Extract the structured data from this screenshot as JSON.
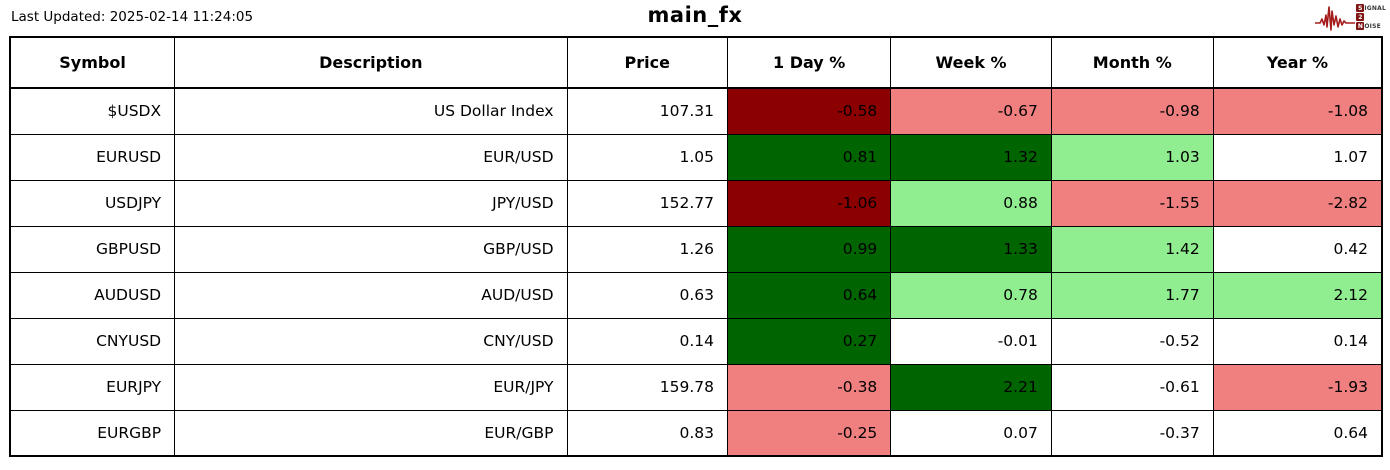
{
  "header": {
    "last_updated": "Last Updated: 2025-02-14 11:24:05",
    "title": "main_fx"
  },
  "logo": {
    "s": "S",
    "ignal": "IGNAL",
    "two": "2",
    "n": "N",
    "oise": "OISE",
    "waveform_color": "#a51c1c"
  },
  "colors": {
    "strong_loss": "#8B0000",
    "loss": "#F08080",
    "strong_gain": "#006400",
    "gain": "#90EE90",
    "neutral": "#FFFFFF"
  },
  "table": {
    "columns": [
      "Symbol",
      "Description",
      "Price",
      "1 Day %",
      "Week %",
      "Month %",
      "Year %"
    ],
    "cell_names": [
      "symbol-cell",
      "description-cell",
      "price-cell",
      "day-change-cell",
      "week-change-cell",
      "month-change-cell",
      "year-change-cell"
    ],
    "rows": [
      {
        "cells": [
          {
            "text": "$USDX",
            "bg": "neutral"
          },
          {
            "text": "US Dollar Index",
            "bg": "neutral"
          },
          {
            "text": "107.31",
            "bg": "neutral"
          },
          {
            "text": "-0.58",
            "bg": "strong_loss"
          },
          {
            "text": "-0.67",
            "bg": "loss"
          },
          {
            "text": "-0.98",
            "bg": "loss"
          },
          {
            "text": "-1.08",
            "bg": "loss"
          }
        ]
      },
      {
        "cells": [
          {
            "text": "EURUSD",
            "bg": "neutral"
          },
          {
            "text": "EUR/USD",
            "bg": "neutral"
          },
          {
            "text": "1.05",
            "bg": "neutral"
          },
          {
            "text": "0.81",
            "bg": "strong_gain"
          },
          {
            "text": "1.32",
            "bg": "strong_gain"
          },
          {
            "text": "1.03",
            "bg": "gain"
          },
          {
            "text": "1.07",
            "bg": "neutral"
          }
        ]
      },
      {
        "cells": [
          {
            "text": "USDJPY",
            "bg": "neutral"
          },
          {
            "text": "JPY/USD",
            "bg": "neutral"
          },
          {
            "text": "152.77",
            "bg": "neutral"
          },
          {
            "text": "-1.06",
            "bg": "strong_loss"
          },
          {
            "text": "0.88",
            "bg": "gain"
          },
          {
            "text": "-1.55",
            "bg": "loss"
          },
          {
            "text": "-2.82",
            "bg": "loss"
          }
        ]
      },
      {
        "cells": [
          {
            "text": "GBPUSD",
            "bg": "neutral"
          },
          {
            "text": "GBP/USD",
            "bg": "neutral"
          },
          {
            "text": "1.26",
            "bg": "neutral"
          },
          {
            "text": "0.99",
            "bg": "strong_gain"
          },
          {
            "text": "1.33",
            "bg": "strong_gain"
          },
          {
            "text": "1.42",
            "bg": "gain"
          },
          {
            "text": "0.42",
            "bg": "neutral"
          }
        ]
      },
      {
        "cells": [
          {
            "text": "AUDUSD",
            "bg": "neutral"
          },
          {
            "text": "AUD/USD",
            "bg": "neutral"
          },
          {
            "text": "0.63",
            "bg": "neutral"
          },
          {
            "text": "0.64",
            "bg": "strong_gain"
          },
          {
            "text": "0.78",
            "bg": "gain"
          },
          {
            "text": "1.77",
            "bg": "gain"
          },
          {
            "text": "2.12",
            "bg": "gain"
          }
        ]
      },
      {
        "cells": [
          {
            "text": "CNYUSD",
            "bg": "neutral"
          },
          {
            "text": "CNY/USD",
            "bg": "neutral"
          },
          {
            "text": "0.14",
            "bg": "neutral"
          },
          {
            "text": "0.27",
            "bg": "strong_gain"
          },
          {
            "text": "-0.01",
            "bg": "neutral"
          },
          {
            "text": "-0.52",
            "bg": "neutral"
          },
          {
            "text": "0.14",
            "bg": "neutral"
          }
        ]
      },
      {
        "cells": [
          {
            "text": "EURJPY",
            "bg": "neutral"
          },
          {
            "text": "EUR/JPY",
            "bg": "neutral"
          },
          {
            "text": "159.78",
            "bg": "neutral"
          },
          {
            "text": "-0.38",
            "bg": "loss"
          },
          {
            "text": "2.21",
            "bg": "strong_gain"
          },
          {
            "text": "-0.61",
            "bg": "neutral"
          },
          {
            "text": "-1.93",
            "bg": "loss"
          }
        ]
      },
      {
        "cells": [
          {
            "text": "EURGBP",
            "bg": "neutral"
          },
          {
            "text": "EUR/GBP",
            "bg": "neutral"
          },
          {
            "text": "0.83",
            "bg": "neutral"
          },
          {
            "text": "-0.25",
            "bg": "loss"
          },
          {
            "text": "0.07",
            "bg": "neutral"
          },
          {
            "text": "-0.37",
            "bg": "neutral"
          },
          {
            "text": "0.64",
            "bg": "neutral"
          }
        ]
      }
    ]
  },
  "chart_data": {
    "type": "table",
    "title": "main_fx",
    "columns": [
      "Symbol",
      "Description",
      "Price",
      "1 Day %",
      "Week %",
      "Month %",
      "Year %"
    ],
    "rows": [
      [
        "$USDX",
        "US Dollar Index",
        107.31,
        -0.58,
        -0.67,
        -0.98,
        -1.08
      ],
      [
        "EURUSD",
        "EUR/USD",
        1.05,
        0.81,
        1.32,
        1.03,
        1.07
      ],
      [
        "USDJPY",
        "JPY/USD",
        152.77,
        -1.06,
        0.88,
        -1.55,
        -2.82
      ],
      [
        "GBPUSD",
        "GBP/USD",
        1.26,
        0.99,
        1.33,
        1.42,
        0.42
      ],
      [
        "AUDUSD",
        "AUD/USD",
        0.63,
        0.64,
        0.78,
        1.77,
        2.12
      ],
      [
        "CNYUSD",
        "CNY/USD",
        0.14,
        0.27,
        -0.01,
        -0.52,
        0.14
      ],
      [
        "EURJPY",
        "EUR/JPY",
        159.78,
        -0.38,
        2.21,
        -0.61,
        -1.93
      ],
      [
        "EURGBP",
        "EUR/GBP",
        0.83,
        -0.25,
        0.07,
        -0.37,
        0.64
      ]
    ],
    "legend": "cell background encodes change: dark red = strong loss, light red = loss, dark green = strong gain, light green = gain, white = neutral"
  }
}
